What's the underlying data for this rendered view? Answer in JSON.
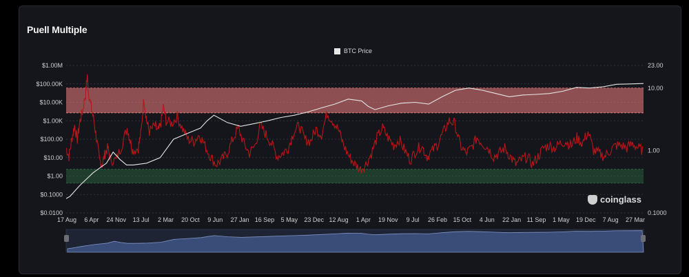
{
  "title": "Puell Multiple",
  "brand": "coinglass",
  "colors": {
    "background": "#15161b",
    "btc_line": "#e6e6e6",
    "puell_line": "#b8161a",
    "red_band": "#f08080",
    "green_band": "#2f6b45",
    "navigator": "#3a4c78"
  },
  "chart_data": {
    "type": "line",
    "title": "Puell Multiple",
    "grid": true,
    "legend": {
      "placement": "top-center",
      "entries": [
        "BTC Price"
      ]
    },
    "x_ticks": [
      "17 Aug",
      "6 Apr",
      "24 Nov",
      "13 Jul",
      "2 Mar",
      "20 Oct",
      "9 Jun",
      "27 Jan",
      "16 Sep",
      "5 May",
      "23 Dec",
      "12 Aug",
      "1 Apr",
      "19 Nov",
      "9 Jul",
      "26 Feb",
      "15 Oct",
      "4 Jun",
      "22 Jan",
      "11 Sep",
      "1 May",
      "19 Dec",
      "7 Aug",
      "27 Mar"
    ],
    "y_left": {
      "scale": "log",
      "ticks": [
        "$1.00M",
        "$100.00K",
        "$10.00K",
        "$1.00K",
        "$100.00",
        "$10.00",
        "$1.00",
        "$0.1000",
        "$0.0100"
      ],
      "range": [
        0.01,
        1000000
      ]
    },
    "y_right": {
      "scale": "log",
      "ticks": [
        "23.00",
        "10.00",
        "1.00",
        "0.1000"
      ],
      "range": [
        0.1,
        23
      ]
    },
    "bands": [
      {
        "axis": "right",
        "range": [
          4,
          10
        ],
        "color": "red"
      },
      {
        "axis": "right",
        "range": [
          0.3,
          0.5
        ],
        "color": "green"
      }
    ],
    "series": [
      {
        "name": "BTC Price",
        "axis": "left",
        "points": [
          [
            0,
            0.06
          ],
          [
            0.3,
            0.08
          ],
          [
            1,
            0.3
          ],
          [
            2,
            1.5
          ],
          [
            3,
            5
          ],
          [
            3.5,
            20
          ],
          [
            4,
            8
          ],
          [
            4.5,
            4
          ],
          [
            5,
            4
          ],
          [
            6,
            5
          ],
          [
            7,
            10
          ],
          [
            8,
            100
          ],
          [
            9,
            200
          ],
          [
            10,
            400
          ],
          [
            10.5,
            1000
          ],
          [
            11,
            2000
          ],
          [
            12,
            800
          ],
          [
            13,
            500
          ],
          [
            14,
            700
          ],
          [
            15,
            1000
          ],
          [
            16,
            1500
          ],
          [
            17,
            2000
          ],
          [
            18,
            3000
          ],
          [
            19,
            5000
          ],
          [
            20,
            8000
          ],
          [
            21,
            15000
          ],
          [
            22,
            12000
          ],
          [
            22.5,
            6000
          ],
          [
            23,
            4000
          ],
          [
            24,
            6500
          ],
          [
            25,
            9000
          ],
          [
            26,
            10000
          ],
          [
            27,
            8000
          ],
          [
            28,
            20000
          ],
          [
            29,
            45000
          ],
          [
            30,
            60000
          ],
          [
            31,
            45000
          ],
          [
            32,
            30000
          ],
          [
            33,
            20000
          ],
          [
            34,
            25000
          ],
          [
            35,
            27000
          ],
          [
            36,
            30000
          ],
          [
            37,
            40000
          ],
          [
            38,
            65000
          ],
          [
            39,
            60000
          ],
          [
            40,
            70000
          ],
          [
            41,
            95000
          ],
          [
            42,
            100000
          ],
          [
            43,
            105000
          ]
        ]
      },
      {
        "name": "Puell Multiple",
        "axis": "right",
        "points": [
          [
            0,
            1.1
          ],
          [
            0.5,
            0.8
          ],
          [
            1,
            1.5
          ],
          [
            1.5,
            2.5
          ],
          [
            2,
            1.5
          ],
          [
            2.5,
            3
          ],
          [
            3,
            4.5
          ],
          [
            3.5,
            8
          ],
          [
            3.8,
            16
          ],
          [
            4,
            9
          ],
          [
            4.5,
            5
          ],
          [
            5,
            3
          ],
          [
            5.5,
            1.5
          ],
          [
            6,
            0.7
          ],
          [
            6.5,
            0.6
          ],
          [
            7,
            0.9
          ],
          [
            7.5,
            1.1
          ],
          [
            8,
            0.7
          ],
          [
            9,
            0.7
          ],
          [
            10,
            1.2
          ],
          [
            11,
            2.3
          ],
          [
            11.5,
            1.5
          ],
          [
            12,
            1.0
          ],
          [
            13,
            1.1
          ],
          [
            13.5,
            2
          ],
          [
            14,
            7
          ],
          [
            14.5,
            3
          ],
          [
            15,
            2
          ],
          [
            16,
            2.5
          ],
          [
            16.5,
            2
          ],
          [
            17,
            2.5
          ],
          [
            17.5,
            5
          ],
          [
            18,
            3
          ],
          [
            19,
            2.7
          ],
          [
            20,
            3.5
          ],
          [
            21,
            2.2
          ],
          [
            22,
            1.5
          ],
          [
            23,
            1.4
          ],
          [
            24,
            1.8
          ],
          [
            25,
            1.2
          ],
          [
            26,
            0.8
          ],
          [
            27,
            0.6
          ],
          [
            28,
            0.7
          ],
          [
            29,
            0.9
          ],
          [
            30,
            1.5
          ],
          [
            31,
            2.3
          ],
          [
            32,
            1.3
          ],
          [
            33,
            0.9
          ],
          [
            34,
            1.2
          ],
          [
            35,
            2.5
          ],
          [
            36,
            1.8
          ],
          [
            37,
            1.3
          ],
          [
            38,
            0.8
          ],
          [
            39,
            0.9
          ],
          [
            40,
            1.1
          ],
          [
            41,
            2
          ],
          [
            42,
            2.5
          ],
          [
            43,
            1.5
          ],
          [
            44,
            1.4
          ],
          [
            45,
            2.2
          ],
          [
            46,
            1.8
          ],
          [
            47,
            4
          ],
          [
            48,
            3
          ],
          [
            49,
            2.2
          ],
          [
            50,
            1.2
          ],
          [
            51,
            0.8
          ],
          [
            52,
            0.6
          ],
          [
            53,
            0.5
          ],
          [
            54,
            0.6
          ],
          [
            55,
            0.9
          ],
          [
            56,
            1.6
          ],
          [
            57,
            2.3
          ],
          [
            58,
            1.6
          ],
          [
            59,
            1.2
          ],
          [
            60,
            1.5
          ],
          [
            61,
            1.0
          ],
          [
            62,
            0.7
          ],
          [
            63,
            1.0
          ],
          [
            64,
            1.2
          ],
          [
            65,
            0.8
          ],
          [
            66,
            1.0
          ],
          [
            67,
            1.3
          ],
          [
            68,
            2
          ],
          [
            69,
            3
          ],
          [
            70,
            2.7
          ],
          [
            71,
            1.2
          ],
          [
            72,
            0.9
          ],
          [
            73,
            1.1
          ],
          [
            74,
            1.6
          ],
          [
            75,
            1.3
          ],
          [
            76,
            1.1
          ],
          [
            77,
            0.8
          ],
          [
            78,
            0.9
          ],
          [
            79,
            1.1
          ],
          [
            80,
            0.8
          ],
          [
            81,
            0.6
          ],
          [
            82,
            0.7
          ],
          [
            83,
            0.8
          ],
          [
            84,
            0.6
          ],
          [
            85,
            0.8
          ],
          [
            86,
            1.1
          ],
          [
            87,
            1.2
          ],
          [
            88,
            1.1
          ],
          [
            89,
            1.3
          ],
          [
            90,
            1.4
          ],
          [
            91,
            1.2
          ],
          [
            92,
            1.6
          ],
          [
            93,
            1.3
          ],
          [
            94,
            2.0
          ],
          [
            95,
            1.0
          ],
          [
            96,
            0.9
          ],
          [
            97,
            0.8
          ],
          [
            98,
            1.0
          ],
          [
            99,
            1.2
          ],
          [
            100,
            1.2
          ],
          [
            101,
            1.1
          ],
          [
            102,
            1.3
          ],
          [
            103,
            1.1
          ],
          [
            104,
            1.0
          ]
        ]
      }
    ]
  }
}
